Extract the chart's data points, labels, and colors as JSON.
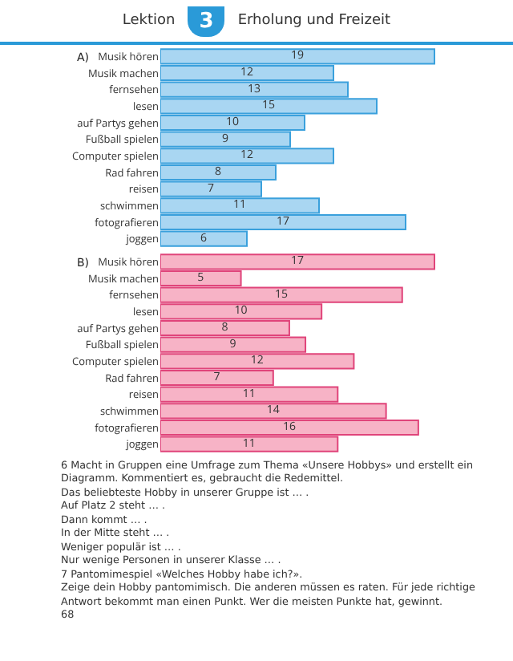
{
  "chart_data": [
    {
      "type": "bar",
      "title": "A)",
      "orientation": "horizontal",
      "data_labels": true,
      "annotations": [
        "Lektion",
        "3",
        "Erholung und Freizeit"
      ],
      "categories": [
        "Musik hören",
        "Musik machen",
        "fernsehen",
        "lesen",
        "auf Partys gehen",
        "Fußball spielen",
        "Computer spielen",
        "Rad fahren",
        "reisen",
        "schwimmen",
        "fotografieren",
        "joggen"
      ],
      "series": [
        {
          "color": "#a9d6f2",
          "values": [
            19,
            12,
            13,
            15,
            10,
            9,
            12,
            8,
            7,
            11,
            17,
            6
          ]
        }
      ]
    },
    {
      "type": "bar",
      "title": "B)",
      "orientation": "horizontal",
      "data_labels": true,
      "annotations": [
        "6 Macht in Gruppen eine Umfrage zum Thema «Unsere Hobbys» und erstellt ein Diagramm. Kommentiert es, gebraucht die Redemittel.",
        "Das beliebteste Hobby in unserer Gruppe ist … .",
        "Auf Platz 2 steht … .",
        "Dann kommt … .",
        "In der Mitte steht … .",
        "Weniger populär ist … .",
        "Nur wenige Personen in unserer Klasse … .",
        "7 Pantomimespiel «Welches Hobby habe ich?».",
        "Zeige dein Hobby pantomimisch. Die anderen müssen es raten. Für jede richtige Antwort bekommt man einen Punkt. Wer die meisten Punkte hat, gewinnt.",
        "68"
      ],
      "categories": [
        "Musik hören",
        "Musik machen",
        "fernsehen",
        "lesen",
        "auf Partys gehen",
        "Fußball spielen",
        "Computer spielen",
        "Rad fahren",
        "reisen",
        "schwimmen",
        "fotografieren",
        "joggen"
      ],
      "series": [
        {
          "color": "#f7b3c6",
          "values": [
            17,
            5,
            15,
            10,
            8,
            9,
            12,
            7,
            11,
            14,
            16,
            11
          ]
        }
      ]
    }
  ]
}
